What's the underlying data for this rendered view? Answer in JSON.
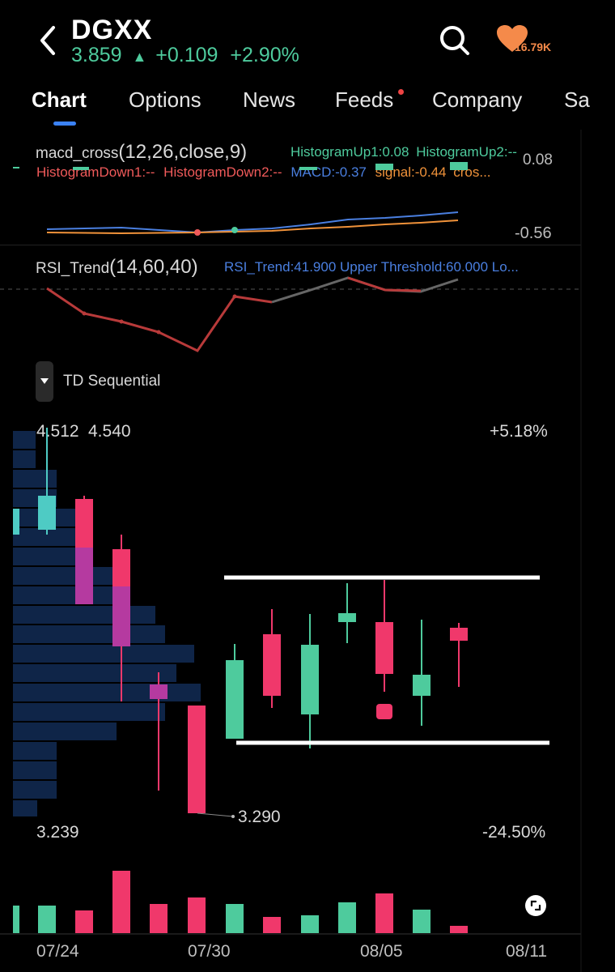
{
  "header": {
    "back_icon": "chevron-left-icon",
    "ticker": "DGXX",
    "price": "3.859",
    "change": "+0.109",
    "change_pct": "+2.90%",
    "up_color": "#4ecb9d",
    "search_icon": "search-icon",
    "watch_icon": "heart-icon",
    "likes": "16.79K"
  },
  "tabs": [
    "Chart",
    "Options",
    "News",
    "Feeds",
    "Company",
    "Sa"
  ],
  "macd": {
    "name": "macd_cross",
    "params": "(12,26,close,9)",
    "hist_up1": "HistogramUp1:0.08",
    "hist_up2": "HistogramUp2:--",
    "hist_down1": "HistogramDown1:--",
    "hist_down2": "HistogramDown2:--",
    "macd": "MACD:-0.37",
    "signal": "signal:-0.44",
    "cross": "cros...",
    "axis_top": "0.08",
    "axis_bottom": "-0.56"
  },
  "rsi": {
    "name": "RSI_Trend",
    "params": "(14,60,40)",
    "values": "RSI_Trend:41.900 Upper Threshold:60.000 Lo..."
  },
  "td": {
    "dropdown_icon": "caret-down-icon",
    "label": "TD Sequential"
  },
  "price_chart": {
    "high_left": "4.512",
    "high_mark": "4.540",
    "high_pct": "+5.18%",
    "low_mark": "3.290",
    "low_left": "3.239",
    "low_pct": "-24.50%",
    "up_color": "#4ecb9d",
    "down_color": "#f0386b",
    "profile_color": "#0f2548"
  },
  "dates": [
    "07/24",
    "07/30",
    "08/05",
    "08/11"
  ],
  "expand_icon": "expand-icon"
}
